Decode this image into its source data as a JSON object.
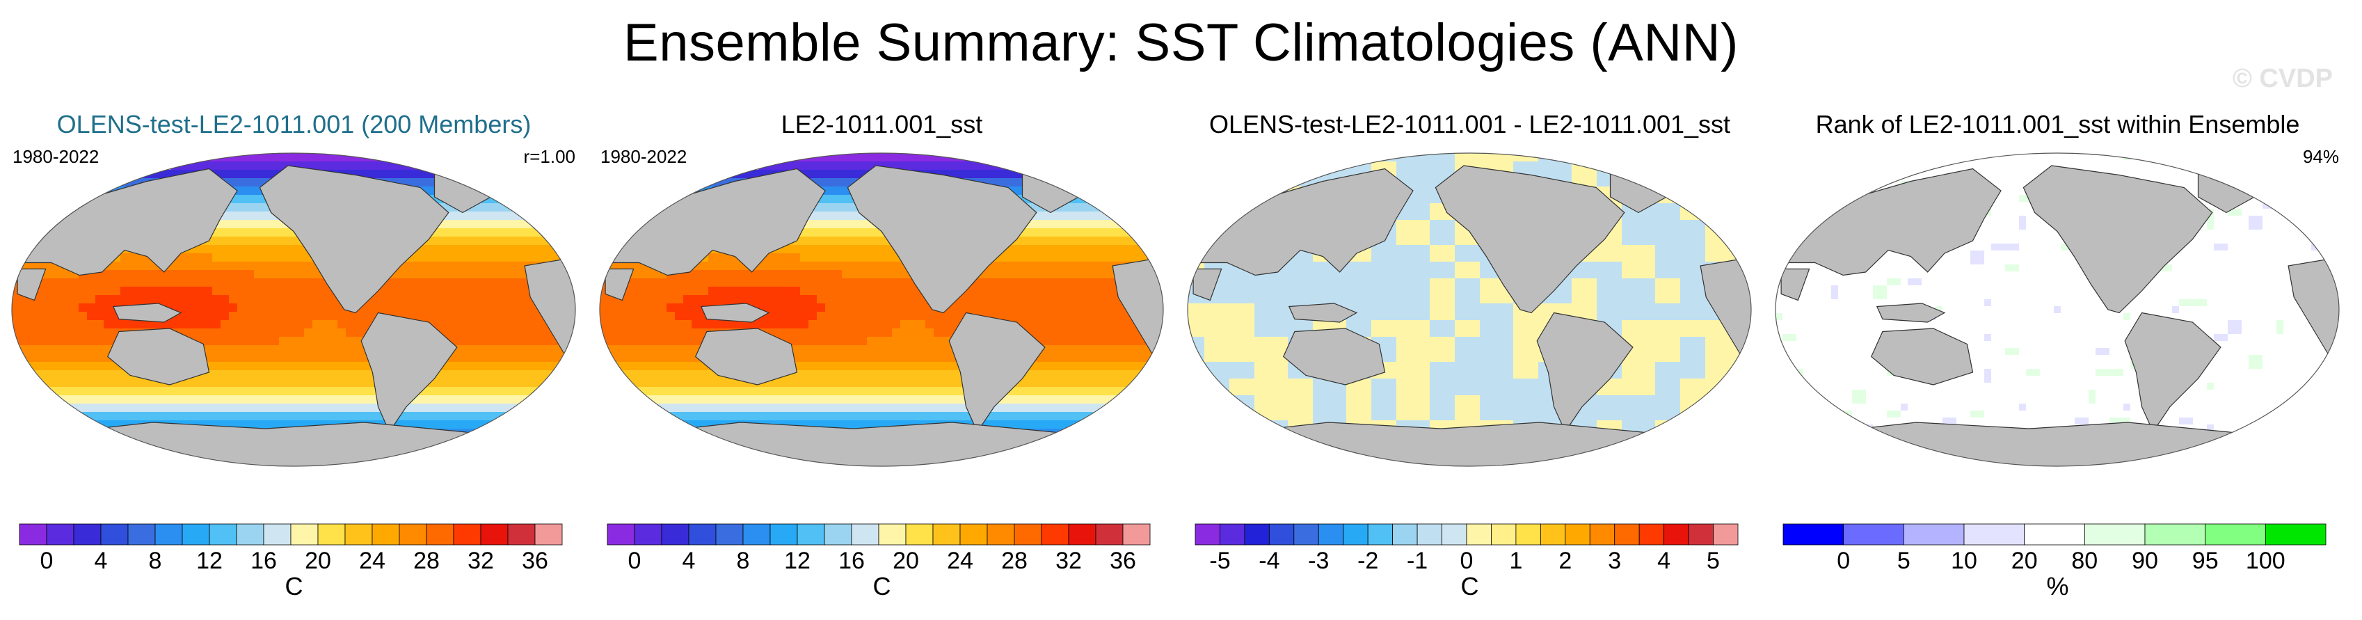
{
  "title": "Ensemble Summary: SST Climatologies (ANN)",
  "watermark": "© CVDP",
  "chart_data": [
    {
      "type": "heatmap",
      "title": "OLENS-test-LE2-1011.001 (200 Members)",
      "period": "1980-2022",
      "stat": "r=1.00",
      "field": "sst",
      "colorbar": {
        "unit": "C",
        "ticks": [
          "0",
          "4",
          "8",
          "12",
          "16",
          "20",
          "24",
          "28",
          "32",
          "36"
        ],
        "tick_values": [
          0,
          4,
          8,
          12,
          16,
          20,
          24,
          28,
          32,
          36
        ],
        "min": -2,
        "max": 38,
        "n_bins": 20,
        "colors": [
          "#8a2be2",
          "#5b2be0",
          "#3a2bd8",
          "#2f4fdc",
          "#3a6ee0",
          "#2a8ff0",
          "#27a9f5",
          "#50c0f5",
          "#9ad4f0",
          "#cfe6f2",
          "#fff5a8",
          "#ffe14a",
          "#ffc21a",
          "#ffa800",
          "#ff8a00",
          "#ff6a00",
          "#ff3a00",
          "#e8130a",
          "#d0303a",
          "#f29a9a"
        ]
      }
    },
    {
      "type": "heatmap",
      "title": "LE2-1011.001_sst",
      "period": "1980-2022",
      "field": "sst",
      "colorbar": {
        "unit": "C",
        "ticks": [
          "0",
          "4",
          "8",
          "12",
          "16",
          "20",
          "24",
          "28",
          "32",
          "36"
        ],
        "tick_values": [
          0,
          4,
          8,
          12,
          16,
          20,
          24,
          28,
          32,
          36
        ],
        "min": -2,
        "max": 38,
        "n_bins": 20,
        "colors": [
          "#8a2be2",
          "#5b2be0",
          "#3a2bd8",
          "#2f4fdc",
          "#3a6ee0",
          "#2a8ff0",
          "#27a9f5",
          "#50c0f5",
          "#9ad4f0",
          "#cfe6f2",
          "#fff5a8",
          "#ffe14a",
          "#ffc21a",
          "#ffa800",
          "#ff8a00",
          "#ff6a00",
          "#ff3a00",
          "#e8130a",
          "#d0303a",
          "#f29a9a"
        ]
      }
    },
    {
      "type": "heatmap",
      "title": "OLENS-test-LE2-1011.001 - LE2-1011.001_sst",
      "field": "difference",
      "colorbar": {
        "unit": "C",
        "ticks": [
          "-5",
          "-4",
          "-3",
          "-2",
          "-1",
          "0",
          "1",
          "2",
          "3",
          "4",
          "5"
        ],
        "tick_values": [
          -5,
          -4,
          -3,
          -2,
          -1,
          0,
          1,
          2,
          3,
          4,
          5
        ],
        "min": -5.5,
        "max": 5.5,
        "n_bins": 22,
        "colors": [
          "#8a2be2",
          "#5b2be0",
          "#2222d8",
          "#2f4fdc",
          "#3a6ee0",
          "#2a8ff0",
          "#27a9f5",
          "#50c0f5",
          "#9ad4f0",
          "#c0e0f2",
          "#cfe6f2",
          "#fff5a8",
          "#fff08a",
          "#ffe14a",
          "#ffc21a",
          "#ffa800",
          "#ff8a00",
          "#ff6a00",
          "#ff3a00",
          "#e8130a",
          "#d0303a",
          "#f29a9a"
        ]
      }
    },
    {
      "type": "heatmap",
      "title": "Rank of LE2-1011.001_sst within Ensemble",
      "stat": "94%",
      "field": "rank",
      "colorbar": {
        "unit": "%",
        "ticks": [
          "0",
          "5",
          "10",
          "20",
          "80",
          "90",
          "95",
          "100"
        ],
        "boundaries": [
          -5,
          0,
          5,
          10,
          20,
          80,
          90,
          95,
          100,
          105
        ],
        "colors": [
          "#0000ff",
          "#6b6bff",
          "#b3b3ff",
          "#e3e3ff",
          "#ffffff",
          "#e3ffe3",
          "#b3ffb3",
          "#80ff80",
          "#00e600"
        ]
      }
    }
  ]
}
